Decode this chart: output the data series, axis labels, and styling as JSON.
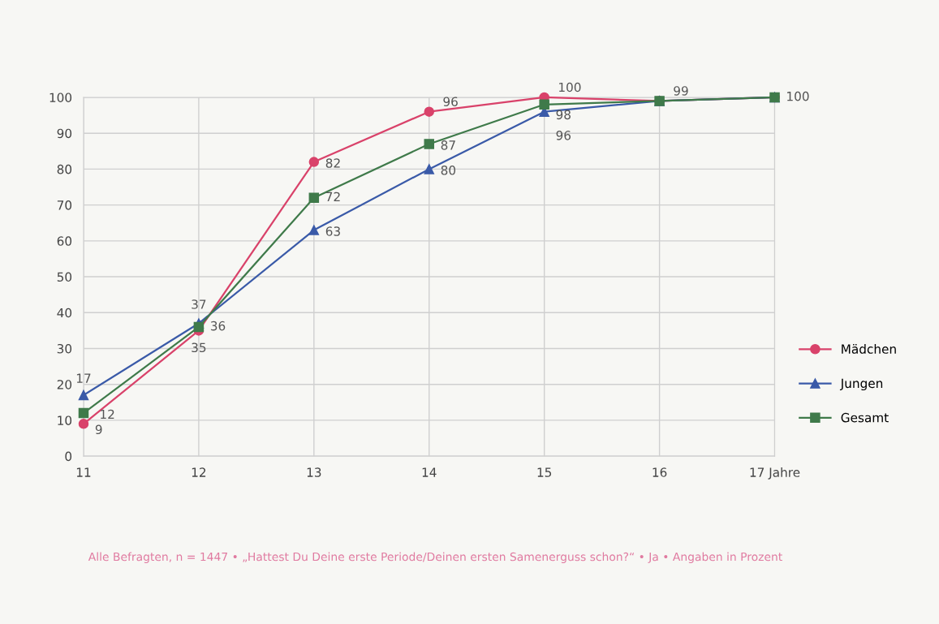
{
  "chart_data": {
    "type": "line",
    "categories": [
      "11",
      "12",
      "13",
      "14",
      "15",
      "16",
      "17 Jahre"
    ],
    "series": [
      {
        "name": "Mädchen",
        "color": "#d9426a",
        "marker": "circle",
        "values": [
          9,
          35,
          82,
          96,
          100,
          99,
          100
        ],
        "value_labels": [
          "9",
          "35",
          "82",
          "96",
          "100",
          null,
          null
        ]
      },
      {
        "name": "Jungen",
        "color": "#3a5aa8",
        "marker": "triangle",
        "values": [
          17,
          37,
          63,
          80,
          96,
          99,
          100
        ],
        "value_labels": [
          "17",
          "37",
          "63",
          "80",
          "96",
          "99",
          null
        ]
      },
      {
        "name": "Gesamt",
        "color": "#3f7a4a",
        "marker": "square",
        "values": [
          12,
          36,
          72,
          87,
          98,
          99,
          100
        ],
        "value_labels": [
          "12",
          "36",
          "72",
          "87",
          "98",
          null,
          "100"
        ]
      }
    ],
    "ylim": [
      0,
      100
    ],
    "yticks": [
      0,
      10,
      20,
      30,
      40,
      50,
      60,
      70,
      80,
      90,
      100
    ],
    "grid": true,
    "legend": "right",
    "line_style": "solid",
    "annotations": [
      "Alle Befragten, n = 1447 • „Hattest Du Deine erste Periode/Deinen ersten Samenerguss schon?“ • Ja • Angaben in Prozent"
    ]
  }
}
